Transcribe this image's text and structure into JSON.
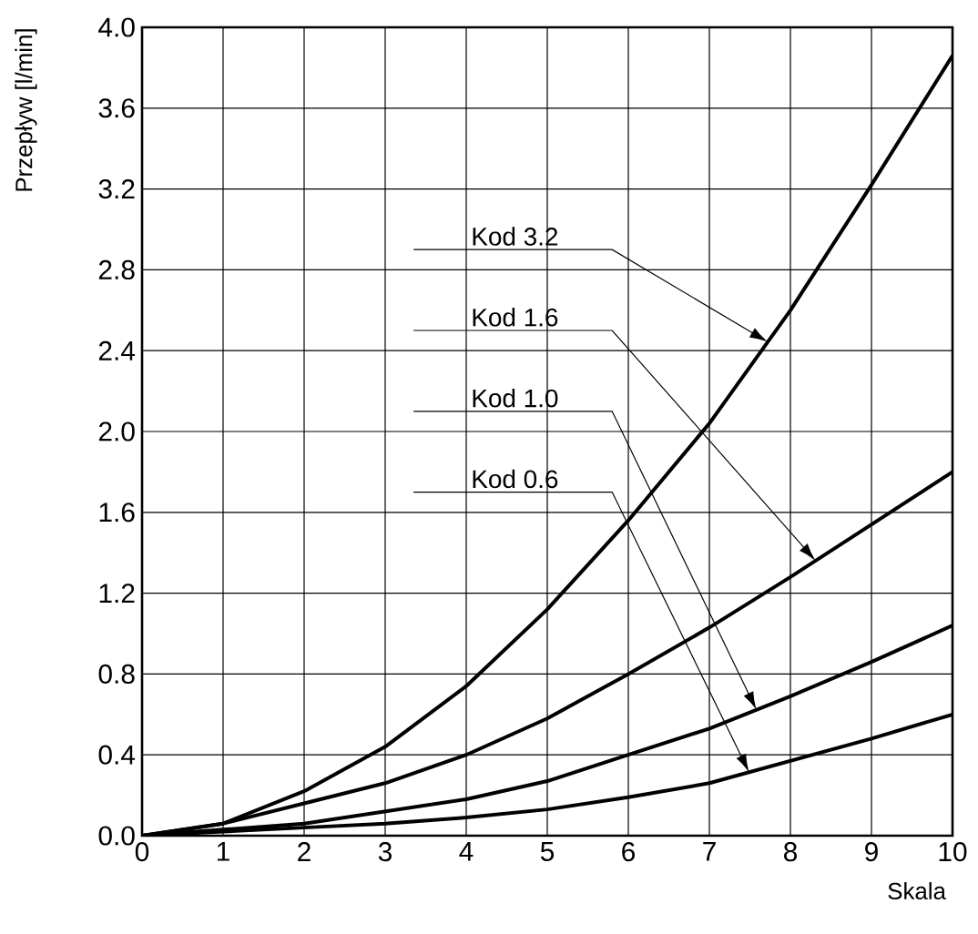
{
  "chart_data": {
    "type": "line",
    "xlabel": "Skala",
    "ylabel": "Przepływ [l/min]",
    "x": [
      0,
      1,
      2,
      3,
      4,
      5,
      6,
      7,
      8,
      9,
      10
    ],
    "series": [
      {
        "color": "#000000",
        "values": [
          0,
          0.06,
          0.22,
          0.44,
          0.74,
          1.12,
          1.56,
          2.04,
          2.6,
          3.22,
          3.86
        ]
      },
      {
        "color": "#000000",
        "values": [
          0,
          0.06,
          0.16,
          0.26,
          0.4,
          0.58,
          0.8,
          1.03,
          1.28,
          1.54,
          1.8
        ]
      },
      {
        "color": "#000000",
        "values": [
          0,
          0.03,
          0.06,
          0.12,
          0.18,
          0.27,
          0.4,
          0.53,
          0.69,
          0.86,
          1.04
        ]
      },
      {
        "color": "#000000",
        "values": [
          0,
          0.02,
          0.04,
          0.06,
          0.09,
          0.13,
          0.19,
          0.26,
          0.37,
          0.48,
          0.6
        ]
      }
    ],
    "xlim": [
      0,
      10
    ],
    "ylim": [
      0,
      4
    ],
    "xticks": [
      0,
      1,
      2,
      3,
      4,
      5,
      6,
      7,
      8,
      9,
      10
    ],
    "yticks": [
      {
        "value": 0,
        "label": "0.0"
      },
      {
        "value": 0.4,
        "label": "0.4"
      },
      {
        "value": 0.8,
        "label": "0.8"
      },
      {
        "value": 1.2,
        "label": "1.2"
      },
      {
        "value": 1.6,
        "label": "1.6"
      },
      {
        "value": 2.0,
        "label": "2.0"
      },
      {
        "value": 2.4,
        "label": "2.4"
      },
      {
        "value": 2.8,
        "label": "2.8"
      },
      {
        "value": 3.2,
        "label": "3.2"
      },
      {
        "value": 3.6,
        "label": "3.6"
      },
      {
        "value": 4.0,
        "label": "4.0"
      }
    ],
    "annotations": [
      "Kod 3.2",
      "Kod 1.6",
      "Kod 1.0",
      "Kod 0.6"
    ],
    "grid": true,
    "marker": "none",
    "line_style": "solid"
  }
}
